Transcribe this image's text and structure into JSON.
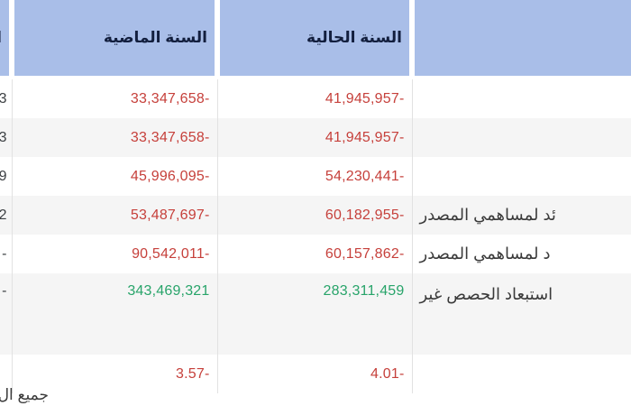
{
  "page": {
    "footnote_partial": "جميع ال"
  },
  "table": {
    "headers": {
      "label": "",
      "current_year": "السنة الحالية",
      "previous_year": "السنة الماضية",
      "change_partial": "ا"
    },
    "rows": [
      {
        "label": "",
        "current": "41,945,957-",
        "previous": "33,347,658-",
        "partial": "3",
        "trend": "negative"
      },
      {
        "label": "",
        "current": "41,945,957-",
        "previous": "33,347,658-",
        "partial": "3",
        "trend": "negative"
      },
      {
        "label": "",
        "current": "54,230,441-",
        "previous": "45,996,095-",
        "partial": "9",
        "trend": "negative"
      },
      {
        "label": "ئد لمساهمي المصدر",
        "current": "60,182,955-",
        "previous": "53,487,697-",
        "partial": "2",
        "trend": "negative"
      },
      {
        "label": "د لمساهمي المصدر",
        "current": "60,157,862-",
        "previous": "90,542,011-",
        "partial": "-",
        "trend": "negative"
      },
      {
        "label": "استبعاد الحصص غير",
        "current": "283,311,459",
        "previous": "343,469,321",
        "partial": "-",
        "trend": "positive"
      },
      {
        "label": "",
        "current": "4.01-",
        "previous": "3.57-",
        "partial": "",
        "trend": "negative"
      }
    ]
  },
  "colors": {
    "header_bg": "#a9bee8",
    "header_text": "#131f3e",
    "negative": "#c6403b",
    "positive": "#28a46a",
    "stripe": "#f5f5f5",
    "border": "#e2e2e2",
    "label_text": "#3a3a3a",
    "muted_text": "#3c4043"
  }
}
